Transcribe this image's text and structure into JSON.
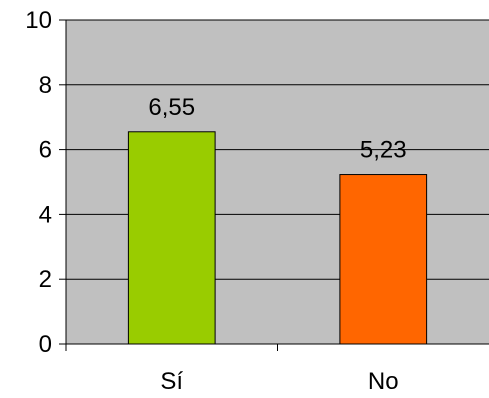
{
  "chart_data": {
    "type": "bar",
    "categories": [
      "Sí",
      "No"
    ],
    "values": [
      6.55,
      5.23
    ],
    "value_labels": [
      "6,55",
      "5,23"
    ],
    "bar_colors": [
      "#99cc00",
      "#ff6600"
    ],
    "ylim": [
      0,
      10
    ],
    "yticks": [
      0,
      2,
      4,
      6,
      8,
      10
    ],
    "ytick_labels": [
      "0",
      "2",
      "4",
      "6",
      "8",
      "10"
    ],
    "plot_background": "#c0c0c0",
    "grid": "horizontal",
    "gridline_color": "#000000",
    "legend": "none"
  }
}
